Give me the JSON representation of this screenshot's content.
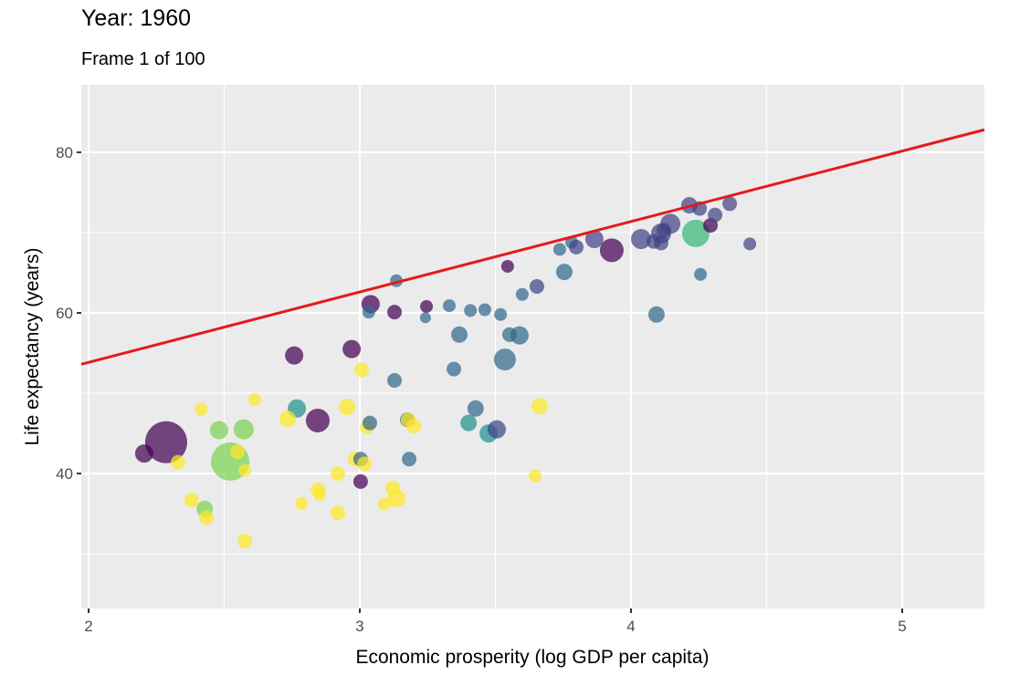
{
  "chart_data": {
    "type": "scatter",
    "title": "Year: 1960",
    "subtitle": "Frame 1 of 100",
    "xlabel": "Economic prosperity (log GDP per capita)",
    "ylabel": "Life expectancy (years)",
    "xlim": [
      1.973,
      5.303
    ],
    "ylim": [
      23.2,
      88.4
    ],
    "x_ticks": [
      2,
      3,
      4,
      5
    ],
    "y_ticks": [
      40,
      60,
      80
    ],
    "grid": true,
    "legend": "none",
    "trend_line": {
      "slope": 8.77,
      "intercept": 36.3,
      "color": "#e41a1c"
    },
    "color_scale": {
      "c1": "#440154",
      "c2": "#414487",
      "c3": "#31688e",
      "c4": "#21908c",
      "c5": "#35b779",
      "c6": "#7ad151",
      "c7": "#fde725"
    },
    "points": [
      {
        "x": 2.286,
        "y": 43.9,
        "size": 23,
        "c": "c1"
      },
      {
        "x": 2.205,
        "y": 42.5,
        "size": 10,
        "c": "c1"
      },
      {
        "x": 2.33,
        "y": 41.4,
        "size": 8,
        "c": "c7"
      },
      {
        "x": 2.415,
        "y": 48.0,
        "size": 7,
        "c": "c7"
      },
      {
        "x": 2.481,
        "y": 45.4,
        "size": 10,
        "c": "c6"
      },
      {
        "x": 2.572,
        "y": 45.5,
        "size": 11,
        "c": "c6"
      },
      {
        "x": 2.522,
        "y": 41.5,
        "size": 21,
        "c": "c6"
      },
      {
        "x": 2.549,
        "y": 42.7,
        "size": 8,
        "c": "c7"
      },
      {
        "x": 2.576,
        "y": 40.4,
        "size": 7,
        "c": "c7"
      },
      {
        "x": 2.38,
        "y": 36.7,
        "size": 8,
        "c": "c7"
      },
      {
        "x": 2.428,
        "y": 35.6,
        "size": 9,
        "c": "c6"
      },
      {
        "x": 2.434,
        "y": 34.5,
        "size": 8,
        "c": "c7"
      },
      {
        "x": 2.576,
        "y": 31.6,
        "size": 8,
        "c": "c7"
      },
      {
        "x": 2.613,
        "y": 49.2,
        "size": 7,
        "c": "c7"
      },
      {
        "x": 2.758,
        "y": 54.7,
        "size": 10,
        "c": "c1"
      },
      {
        "x": 2.97,
        "y": 55.5,
        "size": 10,
        "c": "c1"
      },
      {
        "x": 3.007,
        "y": 52.9,
        "size": 8,
        "c": "c7"
      },
      {
        "x": 3.128,
        "y": 51.6,
        "size": 8,
        "c": "c3"
      },
      {
        "x": 2.768,
        "y": 48.1,
        "size": 10,
        "c": "c4"
      },
      {
        "x": 2.734,
        "y": 46.8,
        "size": 9,
        "c": "c7"
      },
      {
        "x": 2.845,
        "y": 46.6,
        "size": 13,
        "c": "c1"
      },
      {
        "x": 2.953,
        "y": 48.3,
        "size": 9,
        "c": "c7"
      },
      {
        "x": 3.027,
        "y": 45.8,
        "size": 8,
        "c": "c7"
      },
      {
        "x": 3.037,
        "y": 46.3,
        "size": 8,
        "c": "c3"
      },
      {
        "x": 3.175,
        "y": 46.7,
        "size": 8,
        "c": "c3"
      },
      {
        "x": 3.178,
        "y": 46.7,
        "size": 8,
        "c": "c7"
      },
      {
        "x": 3.199,
        "y": 45.9,
        "size": 8,
        "c": "c7"
      },
      {
        "x": 2.983,
        "y": 41.8,
        "size": 8,
        "c": "c7"
      },
      {
        "x": 3.003,
        "y": 41.8,
        "size": 8,
        "c": "c3"
      },
      {
        "x": 3.017,
        "y": 41.2,
        "size": 8,
        "c": "c7"
      },
      {
        "x": 3.182,
        "y": 41.8,
        "size": 8,
        "c": "c3"
      },
      {
        "x": 2.919,
        "y": 40.0,
        "size": 8,
        "c": "c7"
      },
      {
        "x": 3.003,
        "y": 39.0,
        "size": 8,
        "c": "c1"
      },
      {
        "x": 2.845,
        "y": 38.0,
        "size": 8,
        "c": "c7"
      },
      {
        "x": 2.852,
        "y": 37.4,
        "size": 7,
        "c": "c7"
      },
      {
        "x": 2.785,
        "y": 36.3,
        "size": 7,
        "c": "c7"
      },
      {
        "x": 2.919,
        "y": 35.1,
        "size": 8,
        "c": "c7"
      },
      {
        "x": 3.091,
        "y": 36.2,
        "size": 7,
        "c": "c7"
      },
      {
        "x": 3.121,
        "y": 38.2,
        "size": 8,
        "c": "c7"
      },
      {
        "x": 3.135,
        "y": 36.9,
        "size": 10,
        "c": "c7"
      },
      {
        "x": 3.04,
        "y": 61.1,
        "size": 10,
        "c": "c1"
      },
      {
        "x": 3.033,
        "y": 60.1,
        "size": 7,
        "c": "c3"
      },
      {
        "x": 3.128,
        "y": 60.1,
        "size": 8,
        "c": "c1"
      },
      {
        "x": 3.135,
        "y": 64.0,
        "size": 7,
        "c": "c3"
      },
      {
        "x": 3.246,
        "y": 60.8,
        "size": 7,
        "c": "c1"
      },
      {
        "x": 3.242,
        "y": 59.4,
        "size": 6,
        "c": "c3"
      },
      {
        "x": 3.33,
        "y": 60.9,
        "size": 7,
        "c": "c3"
      },
      {
        "x": 3.408,
        "y": 60.3,
        "size": 7,
        "c": "c3"
      },
      {
        "x": 3.461,
        "y": 60.4,
        "size": 7,
        "c": "c3"
      },
      {
        "x": 3.519,
        "y": 59.8,
        "size": 7,
        "c": "c3"
      },
      {
        "x": 3.367,
        "y": 57.3,
        "size": 9,
        "c": "c3"
      },
      {
        "x": 3.552,
        "y": 57.3,
        "size": 8,
        "c": "c3"
      },
      {
        "x": 3.589,
        "y": 57.2,
        "size": 10,
        "c": "c3"
      },
      {
        "x": 3.535,
        "y": 54.2,
        "size": 12,
        "c": "c3"
      },
      {
        "x": 3.347,
        "y": 53.0,
        "size": 8,
        "c": "c3"
      },
      {
        "x": 3.545,
        "y": 65.8,
        "size": 7,
        "c": "c1"
      },
      {
        "x": 3.599,
        "y": 62.3,
        "size": 7,
        "c": "c3"
      },
      {
        "x": 3.653,
        "y": 63.3,
        "size": 8,
        "c": "c2"
      },
      {
        "x": 3.427,
        "y": 48.1,
        "size": 9,
        "c": "c3"
      },
      {
        "x": 3.401,
        "y": 46.3,
        "size": 9,
        "c": "c4"
      },
      {
        "x": 3.475,
        "y": 45.0,
        "size": 10,
        "c": "c4"
      },
      {
        "x": 3.505,
        "y": 45.5,
        "size": 10,
        "c": "c2"
      },
      {
        "x": 3.663,
        "y": 48.4,
        "size": 9,
        "c": "c7"
      },
      {
        "x": 3.646,
        "y": 39.7,
        "size": 7,
        "c": "c7"
      },
      {
        "x": 3.737,
        "y": 67.9,
        "size": 7,
        "c": "c3"
      },
      {
        "x": 3.754,
        "y": 65.1,
        "size": 9,
        "c": "c3"
      },
      {
        "x": 3.781,
        "y": 68.8,
        "size": 7,
        "c": "c3"
      },
      {
        "x": 3.798,
        "y": 68.2,
        "size": 8,
        "c": "c2"
      },
      {
        "x": 3.865,
        "y": 69.2,
        "size": 10,
        "c": "c2"
      },
      {
        "x": 3.929,
        "y": 67.8,
        "size": 13,
        "c": "c1"
      },
      {
        "x": 4.037,
        "y": 69.2,
        "size": 11,
        "c": "c2"
      },
      {
        "x": 4.084,
        "y": 68.9,
        "size": 8,
        "c": "c2"
      },
      {
        "x": 4.111,
        "y": 68.7,
        "size": 8,
        "c": "c2"
      },
      {
        "x": 4.111,
        "y": 69.9,
        "size": 11,
        "c": "c2"
      },
      {
        "x": 4.121,
        "y": 70.3,
        "size": 8,
        "c": "c2"
      },
      {
        "x": 4.145,
        "y": 71.1,
        "size": 11,
        "c": "c2"
      },
      {
        "x": 4.215,
        "y": 73.4,
        "size": 9,
        "c": "c2"
      },
      {
        "x": 4.253,
        "y": 73.0,
        "size": 8,
        "c": "c2"
      },
      {
        "x": 4.239,
        "y": 69.9,
        "size": 15,
        "c": "c5"
      },
      {
        "x": 4.293,
        "y": 70.9,
        "size": 8,
        "c": "c1"
      },
      {
        "x": 4.31,
        "y": 72.2,
        "size": 8,
        "c": "c2"
      },
      {
        "x": 4.364,
        "y": 73.6,
        "size": 8,
        "c": "c2"
      },
      {
        "x": 4.438,
        "y": 68.6,
        "size": 7,
        "c": "c2"
      },
      {
        "x": 4.256,
        "y": 64.8,
        "size": 7,
        "c": "c3"
      },
      {
        "x": 4.094,
        "y": 59.8,
        "size": 9,
        "c": "c3"
      }
    ]
  }
}
